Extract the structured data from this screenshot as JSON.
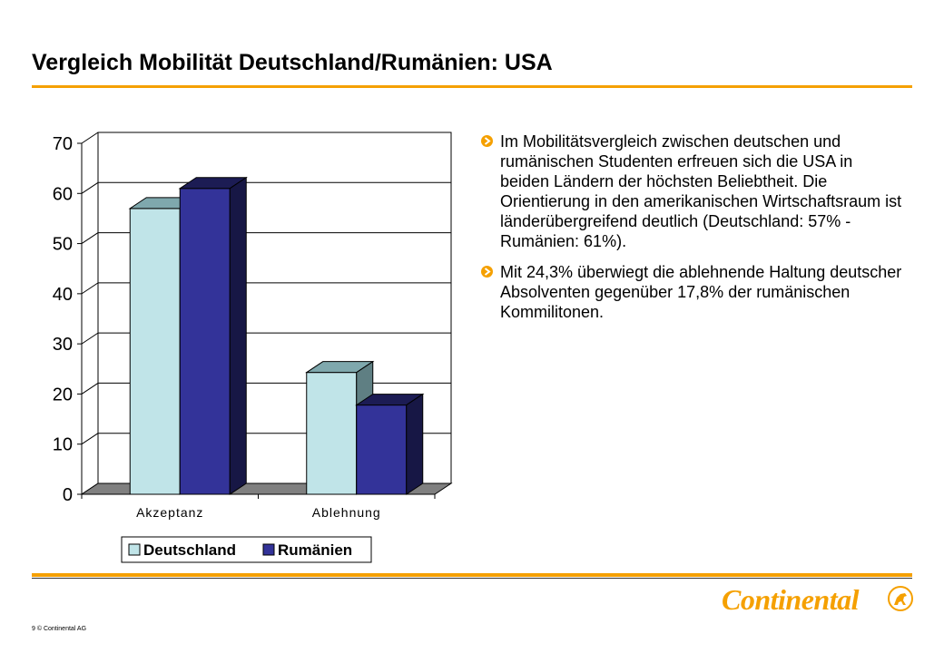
{
  "slide": {
    "title": "Vergleich Mobilität Deutschland/Rumänien: USA",
    "footer": "9  © Continental  AG",
    "brand": "Continental"
  },
  "colors": {
    "accent": "#f5a000",
    "deutschland": "#c0e4e8",
    "rumaenien": "#333399"
  },
  "icons": {
    "bullet": "orange-arrow-icon",
    "logo_emblem": "horse-icon"
  },
  "bullets": [
    "Im Mobilitätsvergleich zwischen deutschen und rumänischen Studenten erfreuen sich die USA in beiden Ländern der höchsten Beliebtheit. Die Orientierung in den amerikanischen Wirtschaftsraum ist länderübergreifend deutlich (Deutschland: 57% - Rumänien: 61%).",
    "Mit 24,3% überwiegt die ablehnende Haltung deutscher Absolventen gegenüber 17,8% der rumänischen Kommilitonen."
  ],
  "chart_data": {
    "type": "bar",
    "categories": [
      "Akzeptanz",
      "Ablehnung"
    ],
    "series": [
      {
        "name": "Deutschland",
        "values": [
          57,
          24.3
        ]
      },
      {
        "name": "Rumänien",
        "values": [
          61,
          17.8
        ]
      }
    ],
    "ylim": [
      0,
      70
    ],
    "yticks": [
      0,
      10,
      20,
      30,
      40,
      50,
      60,
      70
    ],
    "grid": true,
    "legend": "bottom",
    "style": "3d"
  }
}
